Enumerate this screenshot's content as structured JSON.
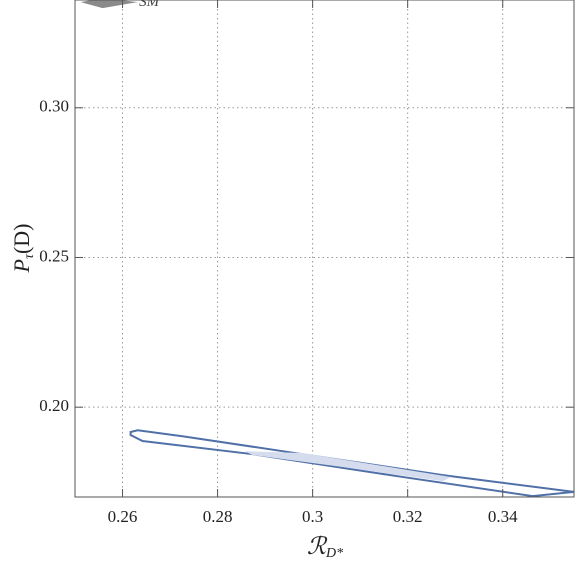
{
  "chart_data": {
    "type": "contour",
    "xlabel": {
      "main": "ℛ",
      "sub": "D*"
    },
    "ylabel": {
      "main": "P",
      "sub": "τ",
      "rest": "(D)"
    },
    "xlim": [
      0.25,
      0.355
    ],
    "ylim": [
      0.17,
      0.336
    ],
    "xticks": [
      0.26,
      0.28,
      0.3,
      0.32,
      0.34
    ],
    "yticks": [
      {
        "value": 0.2,
        "label": "0.20"
      },
      0.25,
      {
        "value": 0.3,
        "label": "0.30"
      }
    ],
    "grid": true,
    "annotations": [
      {
        "text": "SM",
        "x": 0.2635,
        "y": 0.3352
      }
    ],
    "series": [
      {
        "style": "outline",
        "color": "#5070a8",
        "x": [
          0.2617,
          0.2632,
          0.2726,
          0.2979,
          0.3274,
          0.355,
          0.3463,
          0.3189,
          0.2874,
          0.2642,
          0.2617
        ],
        "y": [
          0.1917,
          0.1923,
          0.1903,
          0.1843,
          0.1773,
          0.1717,
          0.1703,
          0.1767,
          0.1843,
          0.1887,
          0.1907
        ]
      },
      {
        "style": "fill",
        "color": "#d4dcee",
        "x": [
          0.2857,
          0.2979,
          0.3189,
          0.3291,
          0.3274,
          0.3063,
          0.2874
        ],
        "y": [
          0.1853,
          0.1847,
          0.1793,
          0.1767,
          0.1753,
          0.18,
          0.184
        ]
      },
      {
        "style": "fill",
        "color": "#8a8a8a",
        "x": [
          0.2512,
          0.2558,
          0.2632,
          0.2558
        ],
        "y": [
          0.3353,
          0.3367,
          0.3353,
          0.3333
        ]
      }
    ]
  }
}
